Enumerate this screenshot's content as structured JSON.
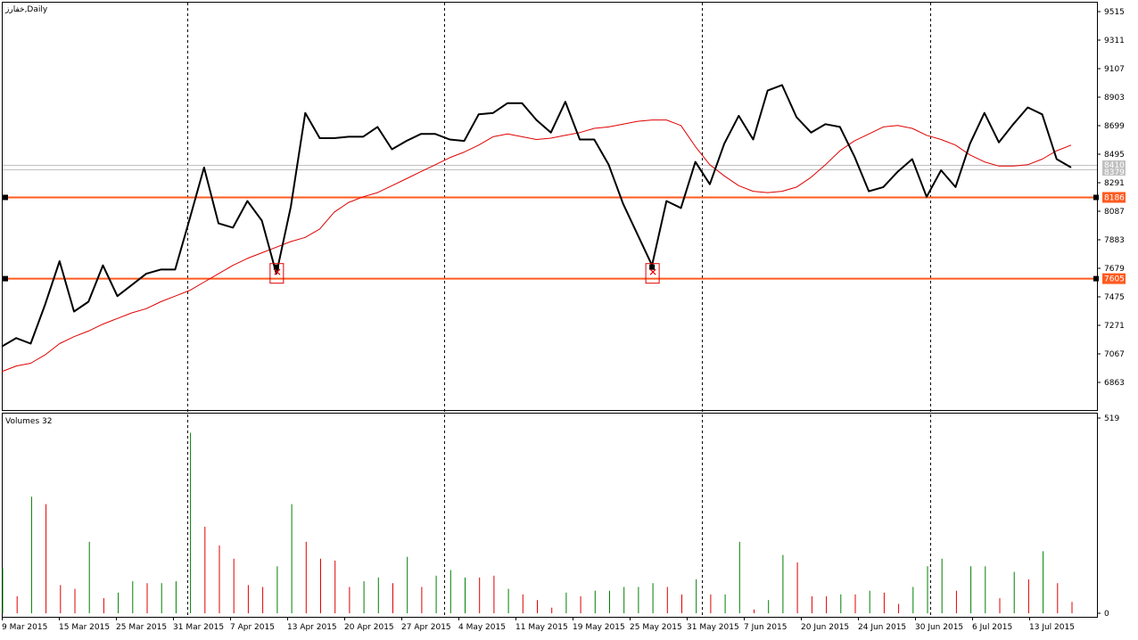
{
  "header": {
    "symbol_label": "خفارز,Daily",
    "volumes_label": "Volumes 32"
  },
  "price_axis_labels": [
    "9515",
    "9311",
    "9107",
    "8903",
    "8699",
    "8495",
    "8291",
    "8087",
    "7883",
    "7679",
    "7475",
    "7271",
    "7067",
    "6863"
  ],
  "volume_axis_labels": [
    "519",
    "0"
  ],
  "date_labels": [
    "9 Mar 2015",
    "15 Mar 2015",
    "25 Mar 2015",
    "31 Mar 2015",
    "7 Apr 2015",
    "13 Apr 2015",
    "20 Apr 2015",
    "27 Apr 2015",
    "4 May 2015",
    "11 May 2015",
    "19 May 2015",
    "25 May 2015",
    "31 May 2015",
    "7 Jun 2015",
    "20 Jun 2015",
    "24 Jun 2015",
    "30 Jun 2015",
    "6 Jul 2015",
    "13 Jul 2015"
  ],
  "levels": [
    {
      "value": 8186,
      "label": "8186"
    },
    {
      "value": 7605,
      "label": "7605"
    }
  ],
  "current_price_labels": [
    "8410",
    "8379"
  ],
  "colors": {
    "price_line": "#000000",
    "moving_average": "#e00000",
    "level_line": "#ff5a1f",
    "volume_up": "#008000",
    "volume_down": "#e00000",
    "marker": "#e00000"
  },
  "chart_data": [
    {
      "type": "line",
      "title": "",
      "x_axis": "date",
      "ylim": [
        6760,
        9560
      ],
      "series": [
        {
          "values": [
            7120,
            7180,
            7140,
            7420,
            7730,
            7370,
            7440,
            7700,
            7480,
            7560,
            7640,
            7670,
            7670,
            8030,
            8400,
            8000,
            7970,
            8160,
            8020,
            7640,
            8120,
            8790,
            8610,
            8610,
            8620,
            8620,
            8690,
            8530,
            8590,
            8640,
            8640,
            8600,
            8590,
            8780,
            8790,
            8860,
            8860,
            8740,
            8650,
            8870,
            8600,
            8600,
            8420,
            8140,
            7920,
            7700,
            8160,
            8110,
            8440,
            8280,
            8570,
            8770,
            8600,
            8950,
            8990,
            8760,
            8650,
            8710,
            8690,
            8480,
            8230,
            8260,
            8370,
            8460,
            8190,
            8380,
            8260,
            8570,
            8790,
            8580,
            8710,
            8830,
            8780,
            8460,
            8400
          ]
        },
        {
          "values": [
            6940,
            6980,
            7000,
            7060,
            7140,
            7190,
            7230,
            7280,
            7320,
            7360,
            7390,
            7440,
            7480,
            7520,
            7580,
            7640,
            7700,
            7750,
            7790,
            7830,
            7870,
            7900,
            7960,
            8080,
            8150,
            8190,
            8220,
            8270,
            8320,
            8370,
            8420,
            8470,
            8510,
            8560,
            8620,
            8640,
            8620,
            8600,
            8610,
            8630,
            8650,
            8680,
            8690,
            8710,
            8730,
            8740,
            8740,
            8700,
            8550,
            8420,
            8340,
            8270,
            8230,
            8220,
            8230,
            8260,
            8330,
            8420,
            8520,
            8590,
            8640,
            8690,
            8700,
            8680,
            8630,
            8600,
            8560,
            8490,
            8440,
            8410,
            8410,
            8420,
            8460,
            8520,
            8560
          ]
        }
      ],
      "levels": [
        8186,
        7605
      ],
      "markers": [
        {
          "index": 19,
          "value": 7700
        },
        {
          "index": 45,
          "value": 7700
        }
      ],
      "grid": false
    },
    {
      "type": "bar",
      "title": "Volumes 32",
      "ylim": [
        0,
        519
      ],
      "values": [
        120,
        45,
        310,
        290,
        75,
        65,
        190,
        40,
        55,
        85,
        80,
        80,
        85,
        480,
        230,
        180,
        145,
        75,
        70,
        125,
        290,
        190,
        145,
        140,
        70,
        85,
        95,
        80,
        150,
        70,
        100,
        115,
        95,
        95,
        100,
        65,
        50,
        35,
        15,
        55,
        45,
        60,
        60,
        70,
        70,
        80,
        70,
        50,
        90,
        50,
        50,
        190,
        10,
        35,
        155,
        135,
        45,
        45,
        50,
        50,
        60,
        55,
        25,
        70,
        125,
        145,
        60,
        125,
        125,
        40,
        110,
        90,
        165,
        80,
        30
      ],
      "directions": [
        "u",
        "d",
        "u",
        "d",
        "d",
        "d",
        "u",
        "d",
        "u",
        "u",
        "d",
        "u",
        "u",
        "u",
        "d",
        "d",
        "d",
        "d",
        "d",
        "u",
        "u",
        "d",
        "d",
        "d",
        "d",
        "u",
        "u",
        "d",
        "u",
        "d",
        "u",
        "u",
        "u",
        "d",
        "d",
        "u",
        "d",
        "d",
        "d",
        "u",
        "d",
        "u",
        "u",
        "u",
        "u",
        "u",
        "d",
        "d",
        "u",
        "d",
        "u",
        "u",
        "d",
        "u",
        "u",
        "d",
        "d",
        "d",
        "u",
        "d",
        "u",
        "d",
        "d",
        "u",
        "u",
        "u",
        "d",
        "u",
        "u",
        "d",
        "u",
        "d",
        "u",
        "d",
        "d"
      ],
      "grid": false
    }
  ]
}
